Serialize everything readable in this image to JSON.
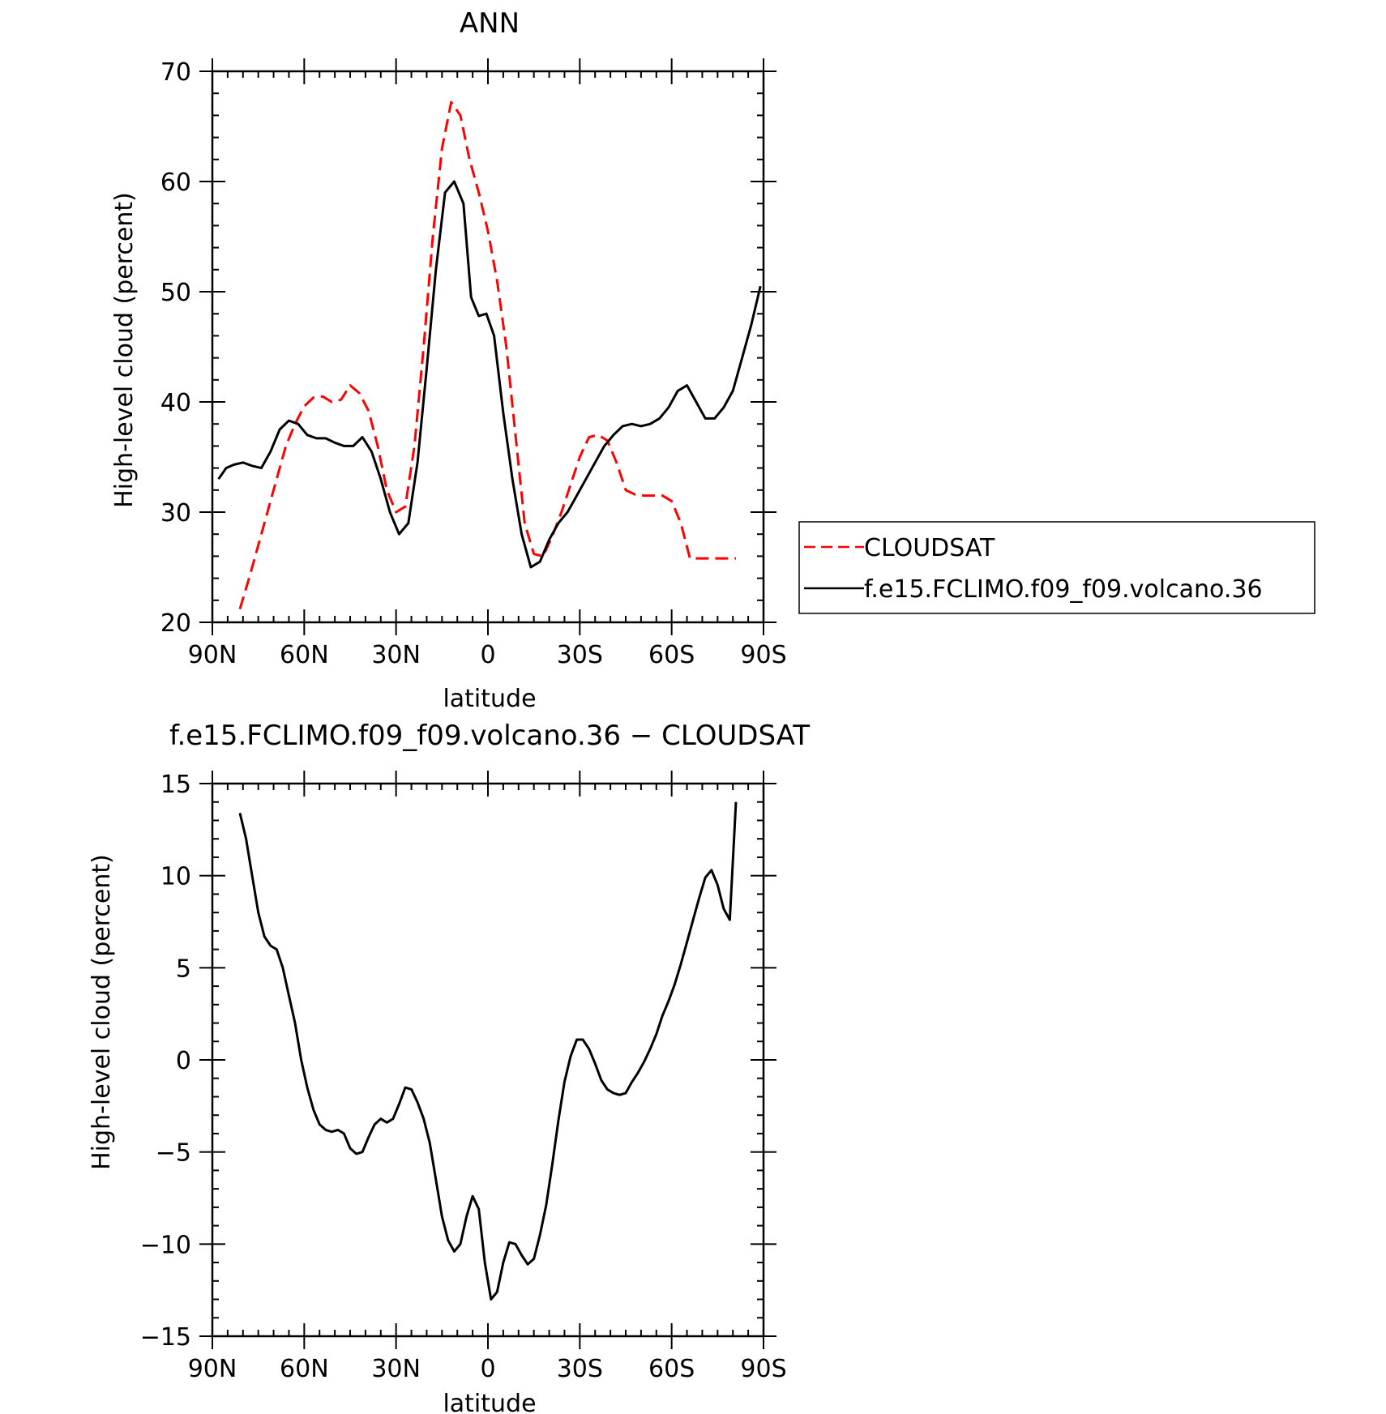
{
  "figure": {
    "title": "ANN"
  },
  "chart_data": [
    {
      "type": "line",
      "title": "ANN",
      "xlabel": "latitude",
      "ylabel": "High-level cloud (percent)",
      "xlim": [
        90,
        -90
      ],
      "ylim": [
        20,
        70
      ],
      "x_ticks": [
        90,
        60,
        30,
        0,
        -30,
        -60,
        -90
      ],
      "x_tick_labels": [
        "90N",
        "60N",
        "30N",
        "0",
        "30S",
        "60S",
        "90S"
      ],
      "y_ticks": [
        20,
        30,
        40,
        50,
        60,
        70
      ],
      "y_tick_labels": [
        "20",
        "30",
        "40",
        "50",
        "60",
        "70"
      ],
      "legend": {
        "position": "right",
        "entries": [
          "CLOUDSAT",
          "f.e15.FCLIMO.f09_f09.volcano.36"
        ]
      },
      "series": [
        {
          "name": "CLOUDSAT",
          "color": "#ff0000",
          "dash": "dashed",
          "x": [
            81.0,
            78.0,
            75.0,
            72.0,
            69.0,
            66.0,
            63.0,
            60.0,
            57.0,
            54.0,
            51.0,
            48.0,
            45.0,
            42.0,
            39.0,
            36.0,
            33.0,
            30.0,
            27.0,
            24.0,
            21.0,
            18.0,
            15.0,
            12.0,
            9.0,
            6.0,
            3.0,
            0.0,
            -3.0,
            -6.0,
            -9.0,
            -12.0,
            -15.0,
            -18.0,
            -21.0,
            -24.0,
            -27.0,
            -30.0,
            -33.0,
            -36.0,
            -39.0,
            -42.0,
            -45.0,
            -48.0,
            -51.0,
            -54.0,
            -57.0,
            -60.0,
            -63.0,
            -66.0,
            -69.0,
            -72.0,
            -75.0,
            -78.0,
            -81.0
          ],
          "y": [
            21.2,
            24.0,
            27.0,
            30.0,
            33.0,
            36.0,
            38.0,
            39.6,
            40.4,
            40.5,
            40.0,
            40.2,
            41.5,
            40.8,
            39.2,
            36.0,
            32.0,
            30.0,
            30.5,
            36.0,
            45.0,
            55.0,
            63.0,
            67.2,
            66.0,
            62.0,
            59.0,
            55.5,
            51.0,
            45.0,
            37.0,
            29.0,
            26.2,
            26.0,
            27.8,
            30.0,
            32.5,
            35.0,
            36.8,
            37.0,
            36.5,
            34.5,
            32.0,
            31.6,
            31.5,
            31.5,
            31.5,
            31.0,
            29.0,
            25.8,
            25.8,
            25.8,
            25.8,
            25.8,
            25.8
          ]
        },
        {
          "name": "f.e15.FCLIMO.f09_f09.volcano.36",
          "color": "#000000",
          "dash": "solid",
          "x": [
            88.0,
            85.5,
            83.0,
            80.0,
            77.0,
            74.0,
            71.0,
            68.0,
            65.0,
            62.0,
            59.0,
            56.0,
            53.0,
            50.0,
            47.0,
            44.0,
            41.0,
            38.0,
            35.0,
            32.0,
            29.0,
            26.0,
            23.0,
            20.0,
            17.0,
            14.0,
            11.0,
            8.0,
            5.5,
            3.0,
            0.5,
            -2.0,
            -5.0,
            -8.0,
            -11.0,
            -14.0,
            -17.0,
            -20.0,
            -23.0,
            -26.0,
            -29.0,
            -32.0,
            -35.0,
            -38.0,
            -41.0,
            -44.0,
            -47.0,
            -50.0,
            -53.0,
            -56.0,
            -59.0,
            -62.0,
            -65.0,
            -68.0,
            -71.0,
            -74.0,
            -77.0,
            -80.0,
            -83.0,
            -86.0,
            -89.0
          ],
          "y": [
            33.0,
            34.0,
            34.3,
            34.5,
            34.2,
            34.0,
            35.5,
            37.5,
            38.3,
            38.0,
            37.0,
            36.7,
            36.7,
            36.3,
            36.0,
            36.0,
            36.8,
            35.5,
            33.0,
            30.0,
            28.0,
            29.0,
            34.5,
            43.0,
            52.0,
            59.0,
            60.0,
            58.0,
            49.5,
            47.8,
            48.0,
            46.0,
            39.0,
            33.0,
            28.0,
            25.0,
            25.5,
            27.5,
            29.0,
            30.0,
            31.5,
            33.0,
            34.5,
            36.0,
            37.0,
            37.8,
            38.0,
            37.8,
            38.0,
            38.5,
            39.5,
            41.0,
            41.5,
            40.0,
            38.5,
            38.5,
            39.5,
            41.0,
            44.0,
            47.0,
            50.5
          ]
        }
      ]
    },
    {
      "type": "line",
      "title": "f.e15.FCLIMO.f09_f09.volcano.36 − CLOUDSAT",
      "xlabel": "latitude",
      "ylabel": "High-level cloud (percent)",
      "xlim": [
        90,
        -90
      ],
      "ylim": [
        -15,
        15
      ],
      "x_ticks": [
        90,
        60,
        30,
        0,
        -30,
        -60,
        -90
      ],
      "x_tick_labels": [
        "90N",
        "60N",
        "30N",
        "0",
        "30S",
        "60S",
        "90S"
      ],
      "y_ticks": [
        -15,
        -10,
        -5,
        0,
        5,
        10,
        15
      ],
      "y_tick_labels": [
        "−15",
        "−10",
        "−5",
        "0",
        "5",
        "10",
        "15"
      ],
      "series": [
        {
          "color": "#000000",
          "dash": "solid",
          "x": [
            81.0,
            79.0,
            77.0,
            75.0,
            73.0,
            71.0,
            69.0,
            67.0,
            65.0,
            63.0,
            61.0,
            59.0,
            57.0,
            55.0,
            53.0,
            51.0,
            49.0,
            47.0,
            45.0,
            43.0,
            41.0,
            39.0,
            37.0,
            35.0,
            33.0,
            31.0,
            29.0,
            27.0,
            25.0,
            23.0,
            21.0,
            19.0,
            17.0,
            15.0,
            13.0,
            11.0,
            9.0,
            7.0,
            5.0,
            3.0,
            1.0,
            -1.0,
            -3.0,
            -5.0,
            -7.0,
            -9.0,
            -11.0,
            -13.0,
            -15.0,
            -17.0,
            -19.0,
            -21.0,
            -23.0,
            -25.0,
            -27.0,
            -29.0,
            -31.0,
            -33.0,
            -35.0,
            -37.0,
            -39.0,
            -41.0,
            -43.0,
            -45.0,
            -47.0,
            -49.0,
            -51.0,
            -53.0,
            -55.0,
            -57.0,
            -59.0,
            -61.0,
            -63.0,
            -65.0,
            -67.0,
            -69.0,
            -71.0,
            -73.0,
            -75.0,
            -77.0,
            -79.0,
            -81.0
          ],
          "y": [
            13.4,
            12.0,
            10.0,
            8.0,
            6.7,
            6.2,
            6.0,
            5.0,
            3.5,
            2.0,
            0.0,
            -1.5,
            -2.7,
            -3.5,
            -3.8,
            -3.9,
            -3.8,
            -4.0,
            -4.8,
            -5.1,
            -5.0,
            -4.2,
            -3.5,
            -3.2,
            -3.4,
            -3.2,
            -2.4,
            -1.5,
            -1.6,
            -2.3,
            -3.2,
            -4.5,
            -6.5,
            -8.5,
            -9.8,
            -10.4,
            -10.0,
            -8.5,
            -7.4,
            -8.1,
            -11.0,
            -13.0,
            -12.6,
            -11.0,
            -9.9,
            -10.0,
            -10.6,
            -11.1,
            -10.8,
            -9.5,
            -7.9,
            -5.7,
            -3.3,
            -1.2,
            0.2,
            1.1,
            1.1,
            0.6,
            -0.2,
            -1.1,
            -1.6,
            -1.8,
            -1.9,
            -1.8,
            -1.2,
            -0.7,
            -0.1,
            0.6,
            1.4,
            2.4,
            3.2,
            4.1,
            5.2,
            6.4,
            7.6,
            8.8,
            9.9,
            10.3,
            9.5,
            8.2,
            7.6,
            14.0
          ]
        }
      ]
    }
  ]
}
